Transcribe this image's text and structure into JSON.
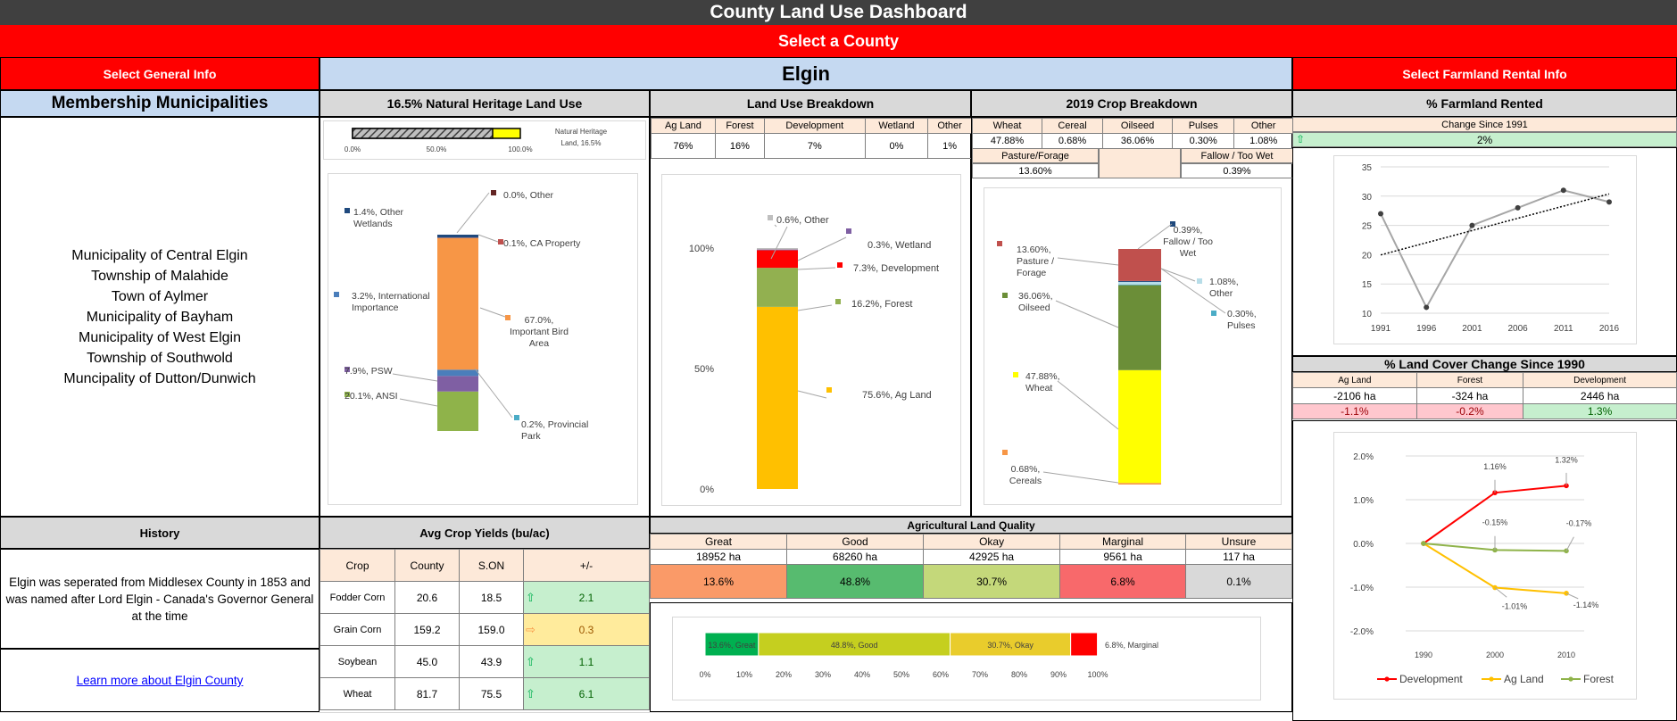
{
  "title": "County Land Use Dashboard",
  "select_county": "Select a County",
  "select_general": "Select General Info",
  "county_name": "Elgin",
  "select_farmland": "Select Farmland Rental Info",
  "membership": {
    "title": "Membership Municipalities",
    "items": [
      "Municipality of Central Elgin",
      "Township of Malahide",
      "Town of Aylmer",
      "Municipality of Bayham",
      "Municipality of West Elgin",
      "Township of Southwold",
      "Muncipality of Dutton/Dunwich"
    ]
  },
  "heritage": {
    "title": "16.5% Natural Heritage Land Use",
    "bar_label": "Natural Heritage Land, 16.5%",
    "ticks": [
      "0.0%",
      "50.0%",
      "100.0%"
    ],
    "value": 0.165,
    "stack": [
      {
        "label": "20.1%, ANSI",
        "value": 20.1,
        "color": "#8fb34a"
      },
      {
        "label": "7.9%, PSW",
        "value": 7.9,
        "color": "#7f5fa3"
      },
      {
        "label": "3.2%, International Importance",
        "value": 3.2,
        "color": "#4a7ebb"
      },
      {
        "label": "67.0%, Important Bird Area",
        "value": 67.0,
        "color": "#f79646"
      },
      {
        "label": "0.2%, Provincial Park",
        "value": 0.2,
        "color": "#4bacc6"
      },
      {
        "label": "0.1%, CA Property",
        "value": 0.1,
        "color": "#c0504d"
      },
      {
        "label": "1.4%, Other Wetlands",
        "value": 1.4,
        "color": "#1f497d"
      },
      {
        "label": "0.0%, Other",
        "value": 0.0,
        "color": "#632523"
      }
    ]
  },
  "land_use": {
    "title": "Land Use Breakdown",
    "headers": [
      "Ag Land",
      "Forest",
      "Development",
      "Wetland",
      "Other"
    ],
    "values": [
      "76%",
      "16%",
      "7%",
      "0%",
      "1%"
    ]
  },
  "crop_breakdown": {
    "title": "2019 Crop Breakdown",
    "headers": [
      "Wheat",
      "Cereal",
      "Oilseed",
      "Pulses",
      "Other"
    ],
    "values": [
      "47.88%",
      "0.68%",
      "36.06%",
      "0.30%",
      "1.08%"
    ],
    "pasture_label": "Pasture/Forage",
    "pasture_value": "13.60%",
    "fallow_label": "Fallow / Too Wet",
    "fallow_value": "0.39%"
  },
  "farmland_rented": {
    "title": "% Farmland Rented",
    "change_label": "Change Since 1991",
    "change_value": "2%"
  },
  "land_cover": {
    "title": "% Land Cover Change Since 1990",
    "headers": [
      "Ag Land",
      "Forest",
      "Development"
    ],
    "ha": [
      "-2106 ha",
      "-324 ha",
      "2446 ha"
    ],
    "pct": [
      "-1.1%",
      "-0.2%",
      "1.3%"
    ]
  },
  "history": {
    "title": "History",
    "text": "Elgin was seperated from Middlesex County in 1853 and was named after Lord Elgin - Canada's Governor General at the time",
    "link": "Learn more about Elgin County"
  },
  "yields": {
    "title": "Avg Crop Yields (bu/ac)",
    "headers": [
      "Crop",
      "County",
      "S.ON",
      "+/-"
    ],
    "rows": [
      {
        "crop": "Fodder Corn",
        "county": "20.6",
        "son": "18.5",
        "diff": "2.1",
        "trend": "up"
      },
      {
        "crop": "Grain Corn",
        "county": "159.2",
        "son": "159.0",
        "diff": "0.3",
        "trend": "flat"
      },
      {
        "crop": "Soybean",
        "county": "45.0",
        "son": "43.9",
        "diff": "1.1",
        "trend": "up"
      },
      {
        "crop": "Wheat",
        "county": "81.7",
        "son": "75.5",
        "diff": "6.1",
        "trend": "up"
      }
    ]
  },
  "ag_quality": {
    "title": "Agricultural Land Quality",
    "headers": [
      "Great",
      "Good",
      "Okay",
      "Marginal",
      "Unsure"
    ],
    "ha": [
      "18952 ha",
      "68260 ha",
      "42925 ha",
      "9561 ha",
      "117 ha"
    ],
    "pct": [
      "13.6%",
      "48.8%",
      "30.7%",
      "6.8%",
      "0.1%"
    ],
    "colors": [
      "#fa9a68",
      "#57bb6f",
      "#c4d87a",
      "#f8696b",
      "#d9d9d9"
    ]
  },
  "chart_data": [
    {
      "type": "bar",
      "name_id": "heritage-stack",
      "categories": [
        "ANSI",
        "PSW",
        "International Importance",
        "Important Bird Area",
        "Provincial Park",
        "CA Property",
        "Other Wetlands",
        "Other"
      ],
      "values": [
        20.1,
        7.9,
        3.2,
        67.0,
        0.2,
        0.1,
        1.4,
        0.0
      ]
    },
    {
      "type": "bar",
      "name_id": "land-use-stack",
      "yticks": [
        "0%",
        "50%",
        "100%"
      ],
      "ylim": [
        0,
        100
      ],
      "series": [
        {
          "name": "75.6%, Ag Land",
          "value": 75.6,
          "color": "#ffc000"
        },
        {
          "name": "16.2%, Forest",
          "value": 16.2,
          "color": "#92b050"
        },
        {
          "name": "7.3%, Development",
          "value": 7.3,
          "color": "#ff0000"
        },
        {
          "name": "0.3%, Wetland",
          "value": 0.3,
          "color": "#7f5fa3"
        },
        {
          "name": "0.6%, Other",
          "value": 0.6,
          "color": "#bfbfbf"
        }
      ]
    },
    {
      "type": "bar",
      "name_id": "crop-stack",
      "series": [
        {
          "name": "0.68%, Cereals",
          "value": 0.68,
          "color": "#f79646"
        },
        {
          "name": "47.88%, Wheat",
          "value": 47.88,
          "color": "#ffff00"
        },
        {
          "name": "36.06%, Oilseed",
          "value": 36.06,
          "color": "#6b8e38"
        },
        {
          "name": "0.30%, Pulses",
          "value": 0.3,
          "color": "#4bacc6"
        },
        {
          "name": "1.08%, Other",
          "value": 1.08,
          "color": "#b7dde8"
        },
        {
          "name": "0.39%, Fallow / Too Wet",
          "value": 0.39,
          "color": "#1f497d"
        },
        {
          "name": "13.60%, Pasture / Forage",
          "value": 13.6,
          "color": "#c0504d"
        }
      ]
    },
    {
      "type": "line",
      "name_id": "rented-line",
      "x": [
        "1991",
        "1996",
        "2001",
        "2006",
        "2011",
        "2016"
      ],
      "values": [
        27,
        11,
        25,
        28,
        31,
        29
      ],
      "ylim": [
        10,
        35
      ],
      "yticks": [
        "10",
        "15",
        "20",
        "25",
        "30",
        "35"
      ]
    },
    {
      "type": "line",
      "name_id": "cover-line",
      "x": [
        "1990",
        "2000",
        "2010"
      ],
      "yticks": [
        "-2.0%",
        "-1.0%",
        "0.0%",
        "1.0%",
        "2.0%"
      ],
      "ylim": [
        -2,
        2
      ],
      "series": [
        {
          "name": "Development",
          "values": [
            0,
            1.16,
            1.32
          ],
          "labels": [
            "",
            "1.16%",
            "1.32%"
          ],
          "color": "#ff0000"
        },
        {
          "name": "Ag Land",
          "values": [
            0,
            -1.01,
            -1.14
          ],
          "labels": [
            "",
            "-1.01%",
            "-1.14%"
          ],
          "color": "#ffc000"
        },
        {
          "name": "Forest",
          "values": [
            0,
            -0.15,
            -0.17
          ],
          "labels": [
            "",
            "-0.15%",
            "-0.17%"
          ],
          "color": "#8fb34a"
        }
      ]
    },
    {
      "type": "bar",
      "name_id": "quality-bar",
      "categories": [
        "13.6%, Great",
        "48.8%, Good",
        "30.7%, Okay",
        "6.8%, Marginal"
      ],
      "values": [
        13.6,
        48.8,
        30.7,
        6.8
      ],
      "colors": [
        "#00b050",
        "#c5cf1f",
        "#e9cc2c",
        "#ff0000"
      ],
      "xticks": [
        "0%",
        "10%",
        "20%",
        "30%",
        "40%",
        "50%",
        "60%",
        "70%",
        "80%",
        "90%",
        "100%"
      ]
    }
  ]
}
